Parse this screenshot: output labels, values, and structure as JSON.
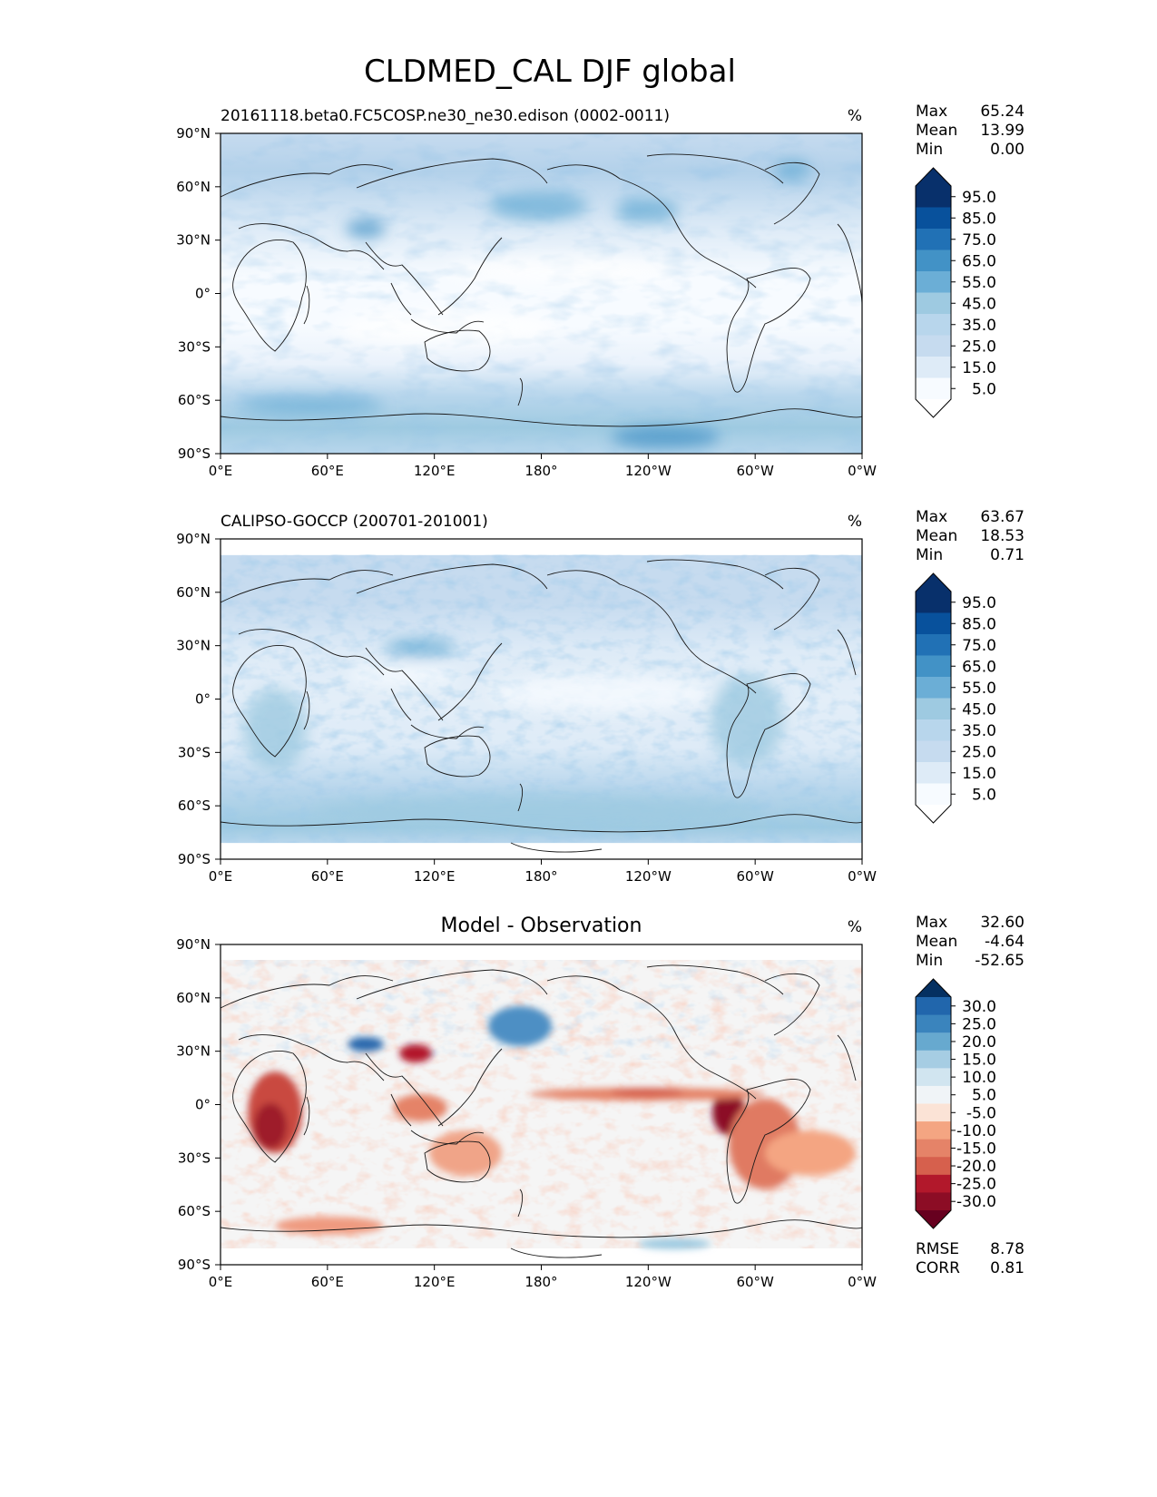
{
  "title": "CLDMED_CAL DJF global",
  "panels": [
    {
      "id": "test",
      "title_left": "20161118.beta0.FC5COSP.ne30_ne30.edison (0002-0011)",
      "title_center": "",
      "units": "%",
      "stats": [
        {
          "label": "Max",
          "value": "65.24"
        },
        {
          "label": "Mean",
          "value": "13.99"
        },
        {
          "label": "Min",
          "value": "0.00"
        }
      ],
      "colorbar": {
        "labels": [
          "95.0",
          "85.0",
          "75.0",
          "65.0",
          "55.0",
          "45.0",
          "35.0",
          "25.0",
          "15.0",
          "5.0"
        ],
        "colors": [
          "#08306b",
          "#08519c",
          "#2171b5",
          "#4292c6",
          "#6baed6",
          "#9ecae1",
          "#b8d6ec",
          "#c6dbef",
          "#deebf7",
          "#f7fbff"
        ],
        "top_color": "#08306b",
        "bottom_color": "#ffffff"
      },
      "extra_stats": []
    },
    {
      "id": "ref",
      "title_left": "CALIPSO-GOCCP (200701-201001)",
      "title_center": "",
      "units": "%",
      "stats": [
        {
          "label": "Max",
          "value": "63.67"
        },
        {
          "label": "Mean",
          "value": "18.53"
        },
        {
          "label": "Min",
          "value": "0.71"
        }
      ],
      "colorbar": {
        "labels": [
          "95.0",
          "85.0",
          "75.0",
          "65.0",
          "55.0",
          "45.0",
          "35.0",
          "25.0",
          "15.0",
          "5.0"
        ],
        "colors": [
          "#08306b",
          "#08519c",
          "#2171b5",
          "#4292c6",
          "#6baed6",
          "#9ecae1",
          "#b8d6ec",
          "#c6dbef",
          "#deebf7",
          "#f7fbff"
        ],
        "top_color": "#08306b",
        "bottom_color": "#ffffff"
      },
      "extra_stats": []
    },
    {
      "id": "diff",
      "title_left": "",
      "title_center": "Model - Observation",
      "units": "%",
      "stats": [
        {
          "label": "Max",
          "value": "32.60"
        },
        {
          "label": "Mean",
          "value": "-4.64"
        },
        {
          "label": "Min",
          "value": "-52.65"
        }
      ],
      "colorbar": {
        "labels": [
          "30.0",
          "25.0",
          "20.0",
          "15.0",
          "10.0",
          "5.0",
          "-5.0",
          "-10.0",
          "-15.0",
          "-20.0",
          "-25.0",
          "-30.0"
        ],
        "colors": [
          "#2166ac",
          "#3a84bd",
          "#67a9cf",
          "#a6cde3",
          "#d1e5f0",
          "#f0f4f7",
          "#fbe3d6",
          "#f4a582",
          "#e58368",
          "#d6604d",
          "#b2182b",
          "#8c0d25"
        ],
        "top_color": "#053061",
        "bottom_color": "#67001f"
      },
      "extra_stats": [
        {
          "label": "RMSE",
          "value": "8.78"
        },
        {
          "label": "CORR",
          "value": "0.81"
        }
      ]
    }
  ],
  "axes": {
    "xticks": [
      "0°E",
      "60°E",
      "120°E",
      "180°",
      "120°W",
      "60°W",
      "0°W"
    ],
    "yticks": [
      "90°N",
      "60°N",
      "30°N",
      "0°",
      "30°S",
      "60°S",
      "90°S"
    ]
  },
  "chart_data": [
    {
      "type": "heatmap",
      "title": "20161118.beta0.FC5COSP.ne30_ne30.edison (0002-0011)",
      "units": "%",
      "x_range": [
        0,
        360
      ],
      "y_range": [
        -90,
        90
      ],
      "stats": {
        "max": 65.24,
        "mean": 13.99,
        "min": 0.0
      },
      "levels": [
        5,
        15,
        25,
        35,
        45,
        55,
        65,
        75,
        85,
        95
      ]
    },
    {
      "type": "heatmap",
      "title": "CALIPSO-GOCCP (200701-201001)",
      "units": "%",
      "x_range": [
        0,
        360
      ],
      "y_range": [
        -90,
        90
      ],
      "stats": {
        "max": 63.67,
        "mean": 18.53,
        "min": 0.71
      },
      "levels": [
        5,
        15,
        25,
        35,
        45,
        55,
        65,
        75,
        85,
        95
      ]
    },
    {
      "type": "heatmap",
      "title": "Model - Observation",
      "units": "%",
      "x_range": [
        0,
        360
      ],
      "y_range": [
        -90,
        90
      ],
      "stats": {
        "max": 32.6,
        "mean": -4.64,
        "min": -52.65,
        "rmse": 8.78,
        "corr": 0.81
      },
      "levels": [
        -30,
        -25,
        -20,
        -15,
        -10,
        -5,
        5,
        10,
        15,
        20,
        25,
        30
      ]
    }
  ]
}
